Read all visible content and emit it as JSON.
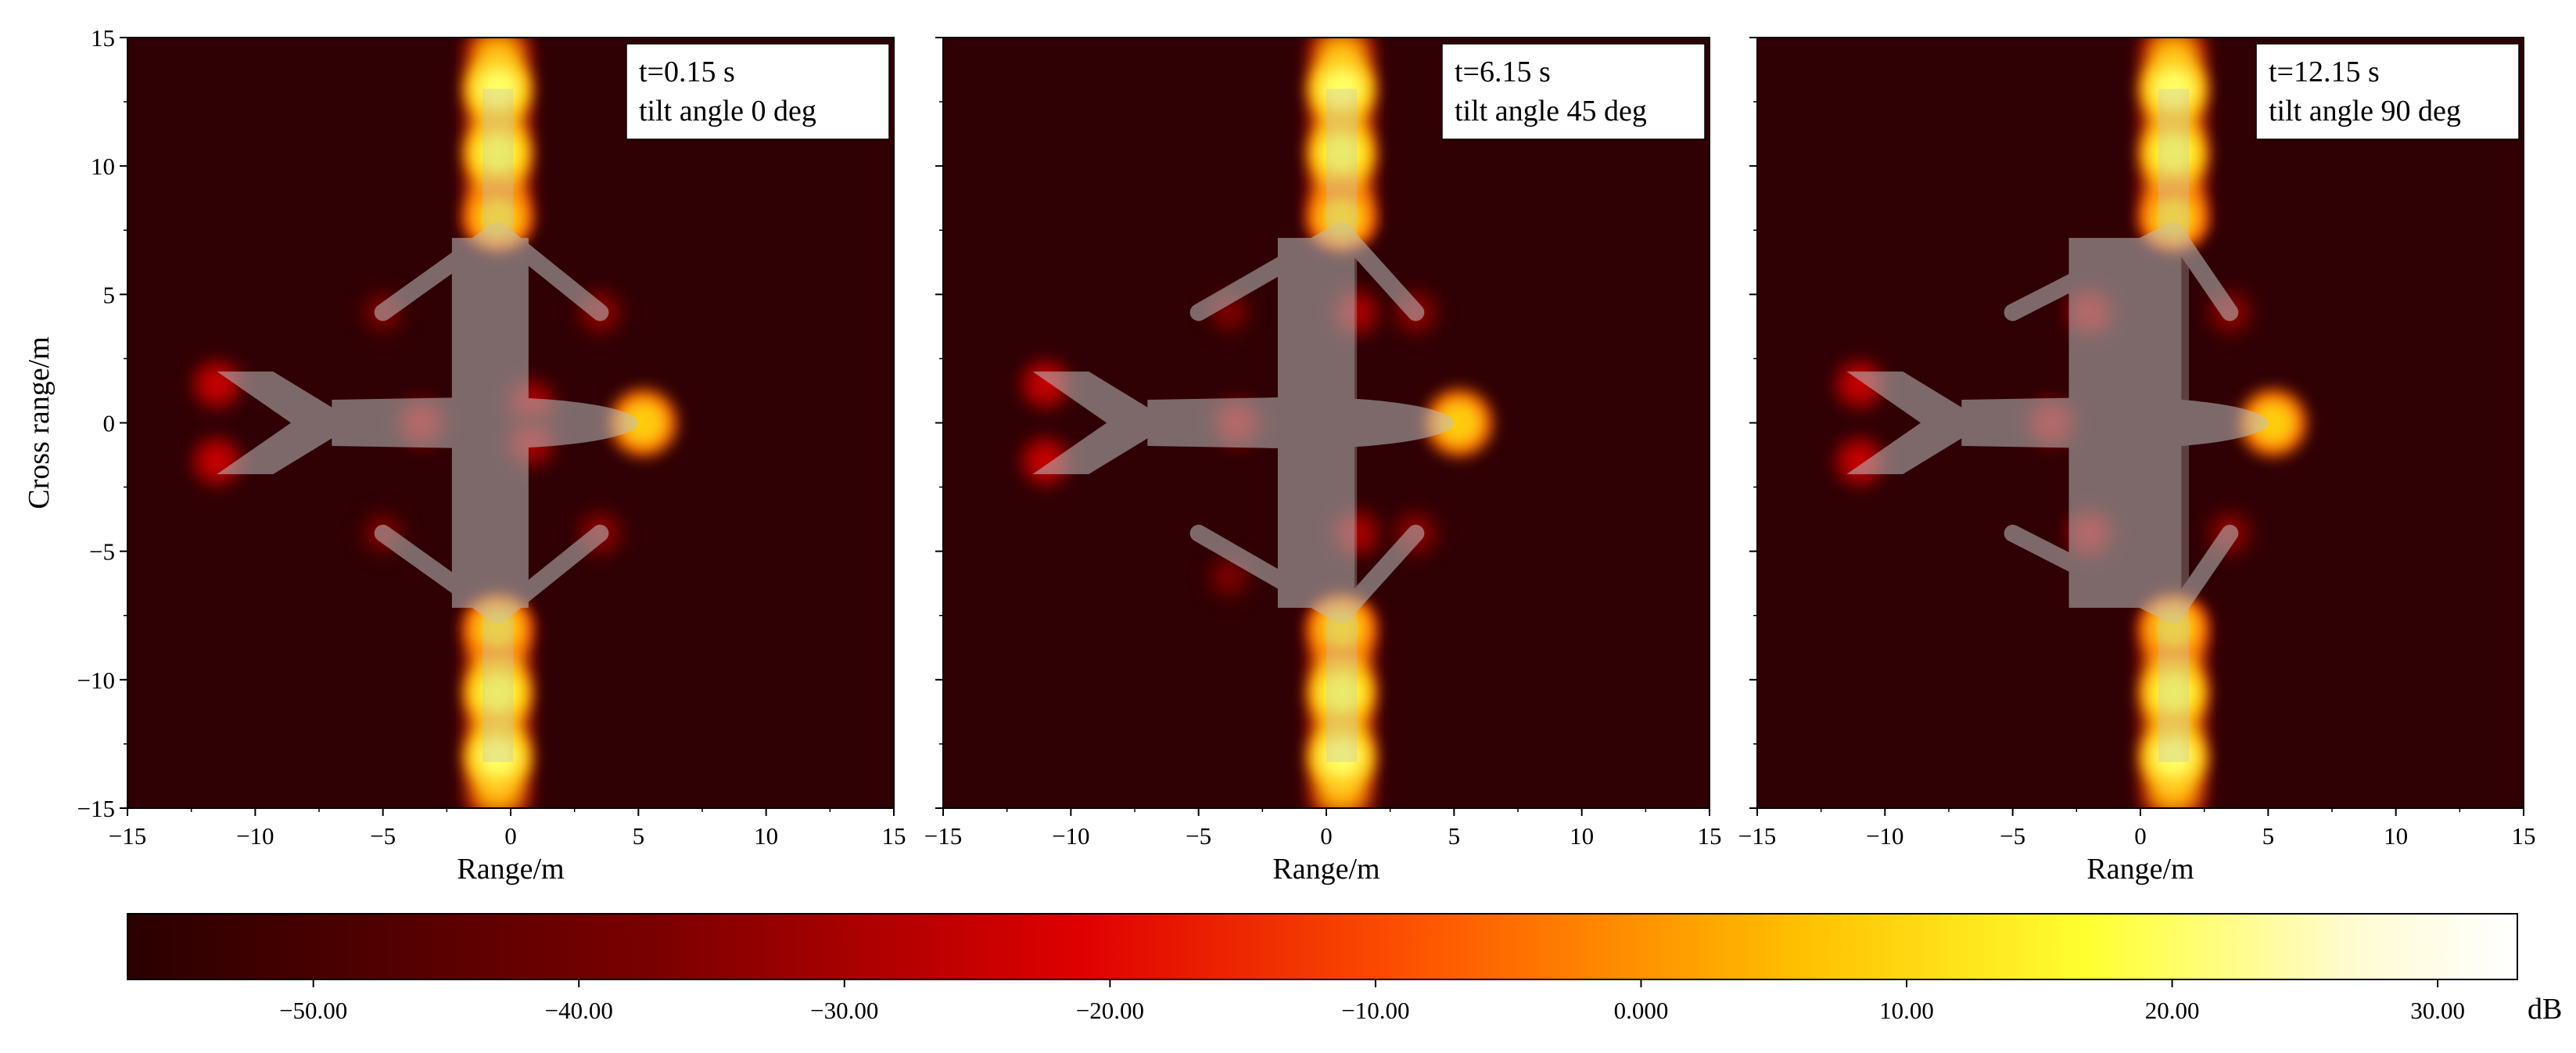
{
  "chart_data": [
    {
      "type": "heatmap",
      "title": "",
      "annotation": [
        "t=0.15 s",
        "tilt angle 0 deg"
      ],
      "time_s": 0.15,
      "tilt_angle_deg": 0,
      "xlabel": "Range/m",
      "ylabel": "Cross range/m",
      "xlim": [
        -15,
        15
      ],
      "ylim": [
        -15,
        15
      ],
      "xticks": [
        -15,
        -10,
        -5,
        0,
        5,
        10,
        15
      ],
      "yticks": [
        -15,
        -10,
        -5,
        0,
        5,
        10,
        15
      ],
      "nacelle_x": -0.5,
      "scatterers": [
        {
          "x": -0.5,
          "y": 13,
          "db": 20
        },
        {
          "x": -0.5,
          "y": 10.5,
          "db": 18
        },
        {
          "x": -0.5,
          "y": 8,
          "db": 10
        },
        {
          "x": -0.5,
          "y": -8,
          "db": 10
        },
        {
          "x": -0.5,
          "y": -10.5,
          "db": 18
        },
        {
          "x": -0.5,
          "y": -13,
          "db": 20
        },
        {
          "x": 5.2,
          "y": 0,
          "db": 8
        },
        {
          "x": -11.5,
          "y": 1.5,
          "db": -25
        },
        {
          "x": -11.5,
          "y": -1.5,
          "db": -25
        },
        {
          "x": -3.5,
          "y": 0,
          "db": -30
        },
        {
          "x": 0.8,
          "y": 0.8,
          "db": -30
        },
        {
          "x": 0.8,
          "y": -0.8,
          "db": -30
        },
        {
          "x": 3.5,
          "y": 4.3,
          "db": -35
        },
        {
          "x": 3.5,
          "y": -4.3,
          "db": -35
        },
        {
          "x": -5,
          "y": 4.3,
          "db": -38
        },
        {
          "x": -5,
          "y": -4.3,
          "db": -38
        }
      ]
    },
    {
      "type": "heatmap",
      "title": "",
      "annotation": [
        "t=6.15 s",
        "tilt angle 45 deg"
      ],
      "time_s": 6.15,
      "tilt_angle_deg": 45,
      "xlabel": "Range/m",
      "ylabel": "",
      "xlim": [
        -15,
        15
      ],
      "ylim": [
        -15,
        15
      ],
      "xticks": [
        -15,
        -10,
        -5,
        0,
        5,
        10,
        15
      ],
      "yticks": [
        -15,
        -10,
        -5,
        0,
        5,
        10,
        15
      ],
      "nacelle_x": 0.6,
      "scatterers": [
        {
          "x": 0.6,
          "y": 13,
          "db": 20
        },
        {
          "x": 0.6,
          "y": 10.5,
          "db": 18
        },
        {
          "x": 0.6,
          "y": 8,
          "db": 10
        },
        {
          "x": 0.6,
          "y": -8,
          "db": 10
        },
        {
          "x": 0.6,
          "y": -10.5,
          "db": 18
        },
        {
          "x": 0.6,
          "y": -13,
          "db": 20
        },
        {
          "x": 5.2,
          "y": 0,
          "db": 8
        },
        {
          "x": -11,
          "y": 1.5,
          "db": -25
        },
        {
          "x": -11,
          "y": -1.5,
          "db": -25
        },
        {
          "x": -3.5,
          "y": 0,
          "db": -30
        },
        {
          "x": 1.2,
          "y": 4.3,
          "db": -30
        },
        {
          "x": 1.2,
          "y": -4.3,
          "db": -30
        },
        {
          "x": 3.5,
          "y": 4.3,
          "db": -35
        },
        {
          "x": 3.5,
          "y": -4.3,
          "db": -35
        },
        {
          "x": -3.8,
          "y": 4.3,
          "db": -38
        },
        {
          "x": -3.8,
          "y": -6,
          "db": -38
        }
      ]
    },
    {
      "type": "heatmap",
      "title": "",
      "annotation": [
        "t=12.15 s",
        "tilt angle 90 deg"
      ],
      "time_s": 12.15,
      "tilt_angle_deg": 90,
      "xlabel": "Range/m",
      "ylabel": "",
      "xlim": [
        -15,
        15
      ],
      "ylim": [
        -15,
        15
      ],
      "xticks": [
        -15,
        -10,
        -5,
        0,
        5,
        10,
        15
      ],
      "yticks": [
        -15,
        -10,
        -5,
        0,
        5,
        10,
        15
      ],
      "nacelle_x": 1.3,
      "scatterers": [
        {
          "x": 1.3,
          "y": 13,
          "db": 20
        },
        {
          "x": 1.3,
          "y": 10.5,
          "db": 18
        },
        {
          "x": 1.3,
          "y": 8,
          "db": 10
        },
        {
          "x": 1.3,
          "y": -8,
          "db": 10
        },
        {
          "x": 1.3,
          "y": -10.5,
          "db": 18
        },
        {
          "x": 1.3,
          "y": -13,
          "db": 20
        },
        {
          "x": 5.2,
          "y": 0,
          "db": 8
        },
        {
          "x": -11,
          "y": 1.5,
          "db": -25
        },
        {
          "x": -11,
          "y": -1.5,
          "db": -25
        },
        {
          "x": -3.5,
          "y": 0,
          "db": -30
        },
        {
          "x": -2,
          "y": 4.3,
          "db": -30
        },
        {
          "x": -2,
          "y": -4.3,
          "db": -30
        },
        {
          "x": 3.5,
          "y": 4.3,
          "db": -35
        },
        {
          "x": 3.5,
          "y": -4.3,
          "db": -35
        }
      ]
    }
  ],
  "colorbar": {
    "unit": "dB",
    "range": [
      -57,
      33
    ],
    "ticks": [
      -50,
      -40,
      -30,
      -20,
      -10,
      0,
      10,
      20,
      30
    ],
    "tick_labels": [
      "−50.00",
      "−40.00",
      "−30.00",
      "−20.00",
      "−10.00",
      "0.000",
      "10.00",
      "20.00",
      "30.00"
    ],
    "colormap": "hot"
  }
}
